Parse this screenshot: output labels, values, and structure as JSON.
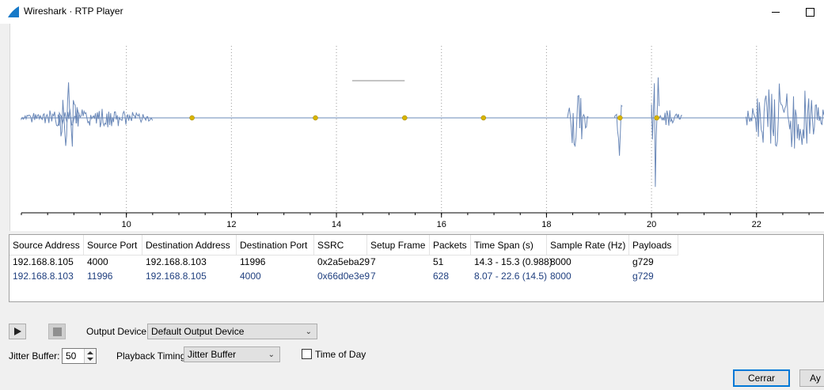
{
  "window": {
    "title": "Wireshark · RTP Player"
  },
  "chart_data": {
    "type": "line",
    "xlim": [
      8.0,
      23.3
    ],
    "x_ticks": [
      10,
      12,
      14,
      16,
      18,
      20,
      22
    ],
    "grid": "vertical-dotted",
    "stream_color": "#6a88b8",
    "marker_color": "#d8b400",
    "markers_x": [
      11.25,
      13.6,
      15.3,
      16.8,
      19.4,
      20.1
    ],
    "bursts": [
      {
        "x": [
          8.0,
          10.5
        ],
        "amp": 0.12
      },
      {
        "x": [
          8.7,
          9.1
        ],
        "amp": 0.45
      },
      {
        "x": [
          18.4,
          18.8
        ],
        "amp": 0.4
      },
      {
        "x": [
          19.3,
          19.45
        ],
        "amp": 0.5
      },
      {
        "x": [
          20.0,
          20.15
        ],
        "amp": 1.0
      },
      {
        "x": [
          20.15,
          20.6
        ],
        "amp": 0.1
      },
      {
        "x": [
          21.8,
          23.3
        ],
        "amp": 0.4
      }
    ],
    "short_segment": {
      "x": [
        14.3,
        15.3
      ],
      "y": 0.42
    }
  },
  "table": {
    "columns": [
      "Source Address",
      "Source Port",
      "Destination Address",
      "Destination Port",
      "SSRC",
      "Setup Frame",
      "Packets",
      "Time Span (s)",
      "Sample Rate (Hz)",
      "Payloads"
    ],
    "rows": [
      [
        "192.168.8.105",
        "4000",
        "192.168.8.103",
        "11996",
        "0x2a5eba29",
        "7",
        "51",
        "14.3 - 15.3 (0.988)",
        "8000",
        "g729"
      ],
      [
        "192.168.8.103",
        "11996",
        "192.168.8.105",
        "4000",
        "0x66d0e3e9",
        "7",
        "628",
        "8.07 - 22.6 (14.5)",
        "8000",
        "g729"
      ]
    ]
  },
  "controls": {
    "output_device_label": "Output Device:",
    "output_device_value": "Default Output Device",
    "jitter_buffer_label": "Jitter Buffer:",
    "jitter_buffer_value": "50",
    "playback_timing_label": "Playback Timing:",
    "playback_timing_value": "Jitter Buffer",
    "time_of_day_label": "Time of Day",
    "time_of_day_checked": false,
    "close_button": "Cerrar",
    "help_button": "Ay"
  }
}
